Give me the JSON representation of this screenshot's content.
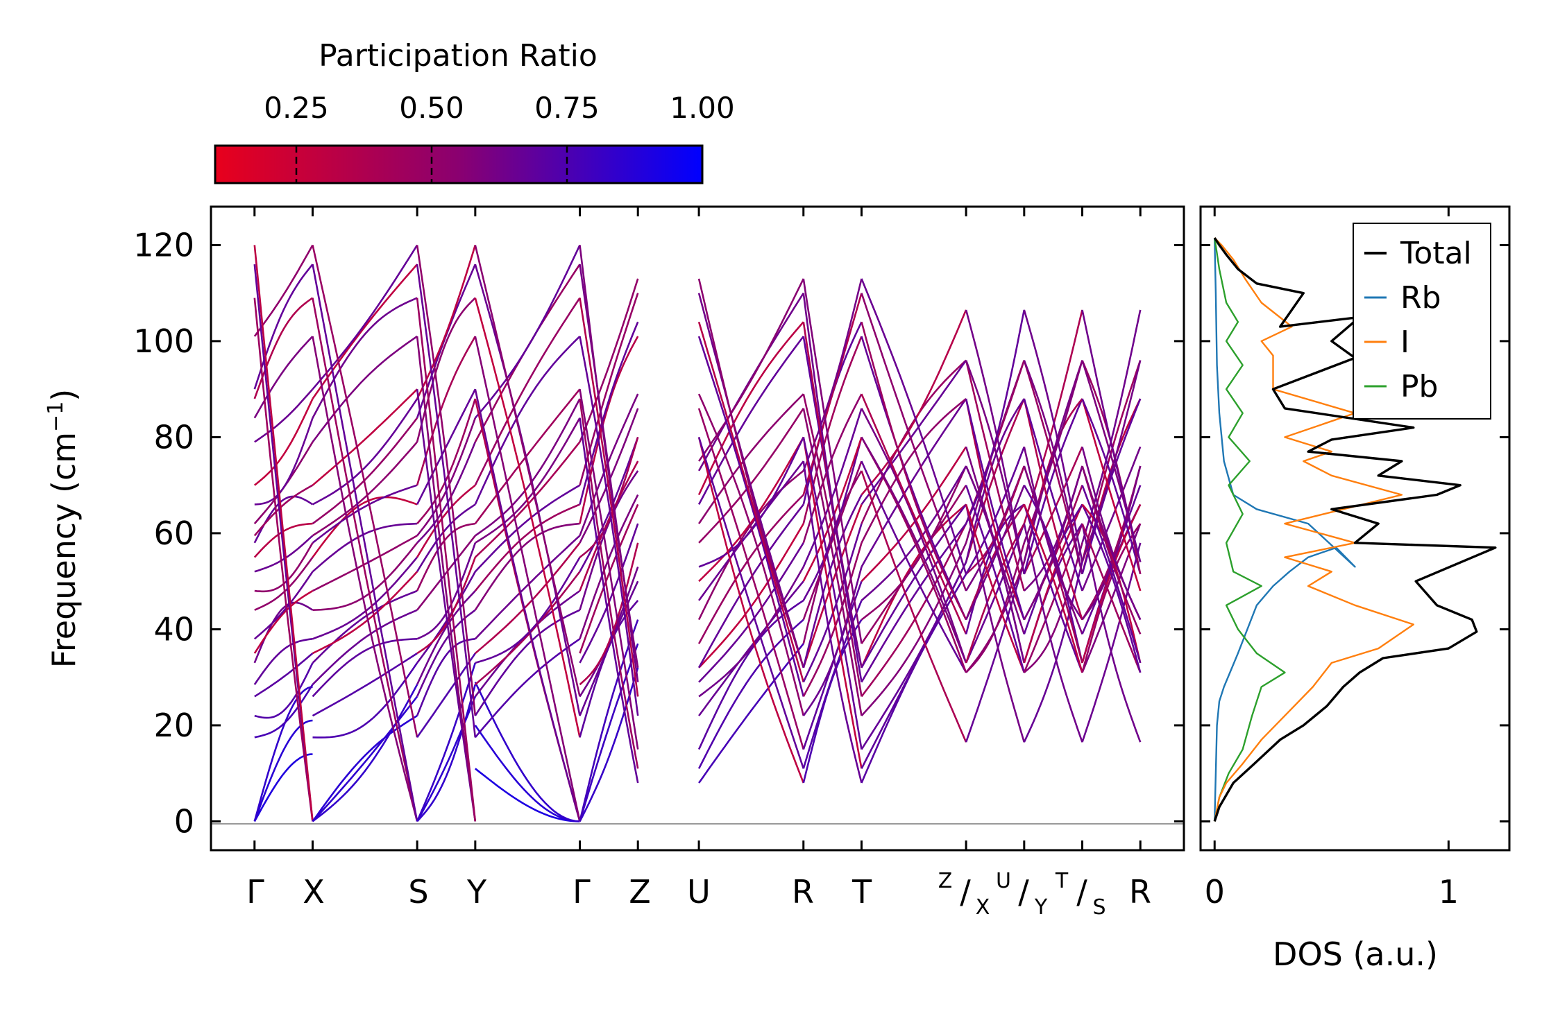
{
  "chart_data": [
    {
      "type": "line",
      "title": "",
      "xlabel": "",
      "ylabel": "Frequency (cm⁻¹)",
      "ylim": [
        -6,
        128
      ],
      "yticks": [
        0,
        20,
        40,
        60,
        80,
        100,
        120
      ],
      "ytick_labels": [
        "0",
        "20",
        "40",
        "60",
        "80",
        "100",
        "120"
      ],
      "high_symmetry_points": [
        "Γ",
        "X",
        "S",
        "Y",
        "Γ",
        "Z",
        "U",
        "R",
        "T",
        "Z/X",
        "U/Y",
        "T/S",
        "R"
      ],
      "kpoint_positions": [
        0,
        1.0,
        2.8,
        3.8,
        5.6,
        6.6,
        7.65,
        9.45,
        10.45,
        12.25,
        13.25,
        14.25,
        15.25
      ],
      "segments": [
        [
          0,
          1
        ],
        [
          1,
          2
        ],
        [
          2,
          3
        ],
        [
          3,
          4
        ],
        [
          4,
          5
        ],
        [
          6,
          7
        ],
        [
          7,
          8
        ],
        [
          8,
          9
        ],
        [
          9,
          10
        ],
        [
          10,
          11
        ],
        [
          11,
          12
        ]
      ],
      "color_mapping": "participation_ratio",
      "band_data": {
        "gamma_frequencies": [
          0,
          0,
          0,
          17.5,
          22,
          26,
          28.5,
          33,
          35,
          38,
          44,
          48,
          52,
          55,
          58,
          59.5,
          62,
          66,
          70,
          79,
          84,
          88,
          90,
          101,
          109,
          116,
          120
        ],
        "z_frequencies": [
          8,
          11,
          15,
          22,
          26,
          29,
          32,
          37,
          42,
          46,
          50,
          53,
          58,
          62,
          66,
          68,
          73,
          75,
          80,
          86,
          89,
          101,
          104,
          110,
          113
        ],
        "r_frequencies": [
          16.5,
          31,
          33,
          39,
          42,
          48,
          51.5,
          54,
          58,
          62,
          66,
          70,
          74,
          78,
          88,
          96,
          106.5
        ]
      }
    },
    {
      "type": "line",
      "title": "",
      "xlabel": "DOS (a.u.)",
      "ylabel": "",
      "xlim": [
        -0.06,
        1.26
      ],
      "ylim": [
        -6,
        128
      ],
      "xticks": [
        0,
        1
      ],
      "xtick_labels": [
        "0",
        "1"
      ],
      "legend_position": "top-right",
      "series": [
        {
          "name": "Total",
          "color": "#000000",
          "x": [
            0,
            0.02,
            0.08,
            0.17,
            0.28,
            0.38,
            0.48,
            0.55,
            0.62,
            0.72,
            1.0,
            1.12,
            1.1,
            0.95,
            0.86,
            1.2,
            0.6,
            0.7,
            0.5,
            0.95,
            1.05,
            0.7,
            0.8,
            0.4,
            0.5,
            0.85,
            0.3,
            0.25,
            0.6,
            0.5,
            0.62,
            0.28,
            0.38,
            0.18,
            0.1,
            0.05,
            0.02,
            0
          ],
          "y": [
            0,
            3,
            8,
            12,
            17,
            20,
            24,
            28,
            31,
            34,
            36,
            39.5,
            42,
            45,
            50,
            57,
            58,
            62,
            65,
            68,
            70,
            72,
            75,
            77,
            79.5,
            82,
            86,
            90,
            96.5,
            100,
            105,
            103,
            110,
            112,
            115,
            118,
            120,
            121.5
          ]
        },
        {
          "name": "Rb",
          "color": "#1f77b4",
          "x": [
            0,
            0.005,
            0.01,
            0.02,
            0.04,
            0.1,
            0.18,
            0.25,
            0.32,
            0.4,
            0.52,
            0.6,
            0.4,
            0.18,
            0.08,
            0.04,
            0.02,
            0.01,
            0.005,
            0
          ],
          "y": [
            0,
            10,
            20,
            25,
            28,
            35,
            45,
            49,
            52,
            55,
            57,
            53,
            62,
            65,
            68,
            75,
            85,
            95,
            110,
            121.5
          ]
        },
        {
          "name": "I",
          "color": "#ff7f0e",
          "x": [
            0,
            0.02,
            0.05,
            0.12,
            0.2,
            0.3,
            0.42,
            0.5,
            0.7,
            0.85,
            0.6,
            0.4,
            0.5,
            0.3,
            0.6,
            0.3,
            0.8,
            0.5,
            0.38,
            0.5,
            0.3,
            0.6,
            0.25,
            0.25,
            0.2,
            0.33,
            0.2,
            0.13,
            0.08,
            0.03,
            0
          ],
          "y": [
            0,
            5,
            8,
            12,
            17,
            22,
            28,
            33,
            36,
            41,
            45,
            49,
            52,
            55,
            58,
            62,
            68,
            72,
            75,
            77,
            80,
            85,
            90,
            97,
            100,
            103,
            108,
            113,
            117,
            120,
            121.5
          ]
        },
        {
          "name": "Pb",
          "color": "#2ca02c",
          "x": [
            0,
            0.02,
            0.06,
            0.12,
            0.16,
            0.2,
            0.3,
            0.18,
            0.1,
            0.05,
            0.2,
            0.08,
            0.05,
            0.12,
            0.06,
            0.15,
            0.06,
            0.12,
            0.05,
            0.12,
            0.05,
            0.1,
            0.05,
            0.02,
            0
          ],
          "y": [
            0,
            5,
            10,
            15,
            22,
            28,
            31,
            35,
            40,
            45,
            49,
            52,
            58,
            64,
            70,
            75,
            80,
            85,
            90,
            95,
            100,
            104,
            108,
            115,
            121.5
          ]
        }
      ]
    },
    {
      "type": "colorbar",
      "title": "Participation Ratio",
      "vmin": 0.1,
      "vmax": 1.0,
      "ticks": [
        0.25,
        0.5,
        0.75,
        1.0
      ],
      "tick_labels": [
        "0.25",
        "0.50",
        "0.75",
        "1.00"
      ],
      "colors": [
        "#e8001c",
        "#0000ff"
      ]
    }
  ],
  "labels": {
    "colorbar_title": "Participation Ratio",
    "ylabel": "Frequency (cm",
    "ylabel_sup": "−1",
    "ylabel_end": ")",
    "dos_xlabel": "DOS (a.u.)",
    "kpath": {
      "G1": "Γ",
      "X": "X",
      "S": "S",
      "Y": "Y",
      "G2": "Γ",
      "Z": "Z",
      "U": "U",
      "R1": "R",
      "T": "T",
      "Z_over_X_top": "Z",
      "Z_over_X_bot": "X",
      "U_over_Y_top": "U",
      "U_over_Y_bot": "Y",
      "T_over_S_top": "T",
      "T_over_S_bot": "S",
      "R2": "R",
      "slash": "/"
    }
  }
}
